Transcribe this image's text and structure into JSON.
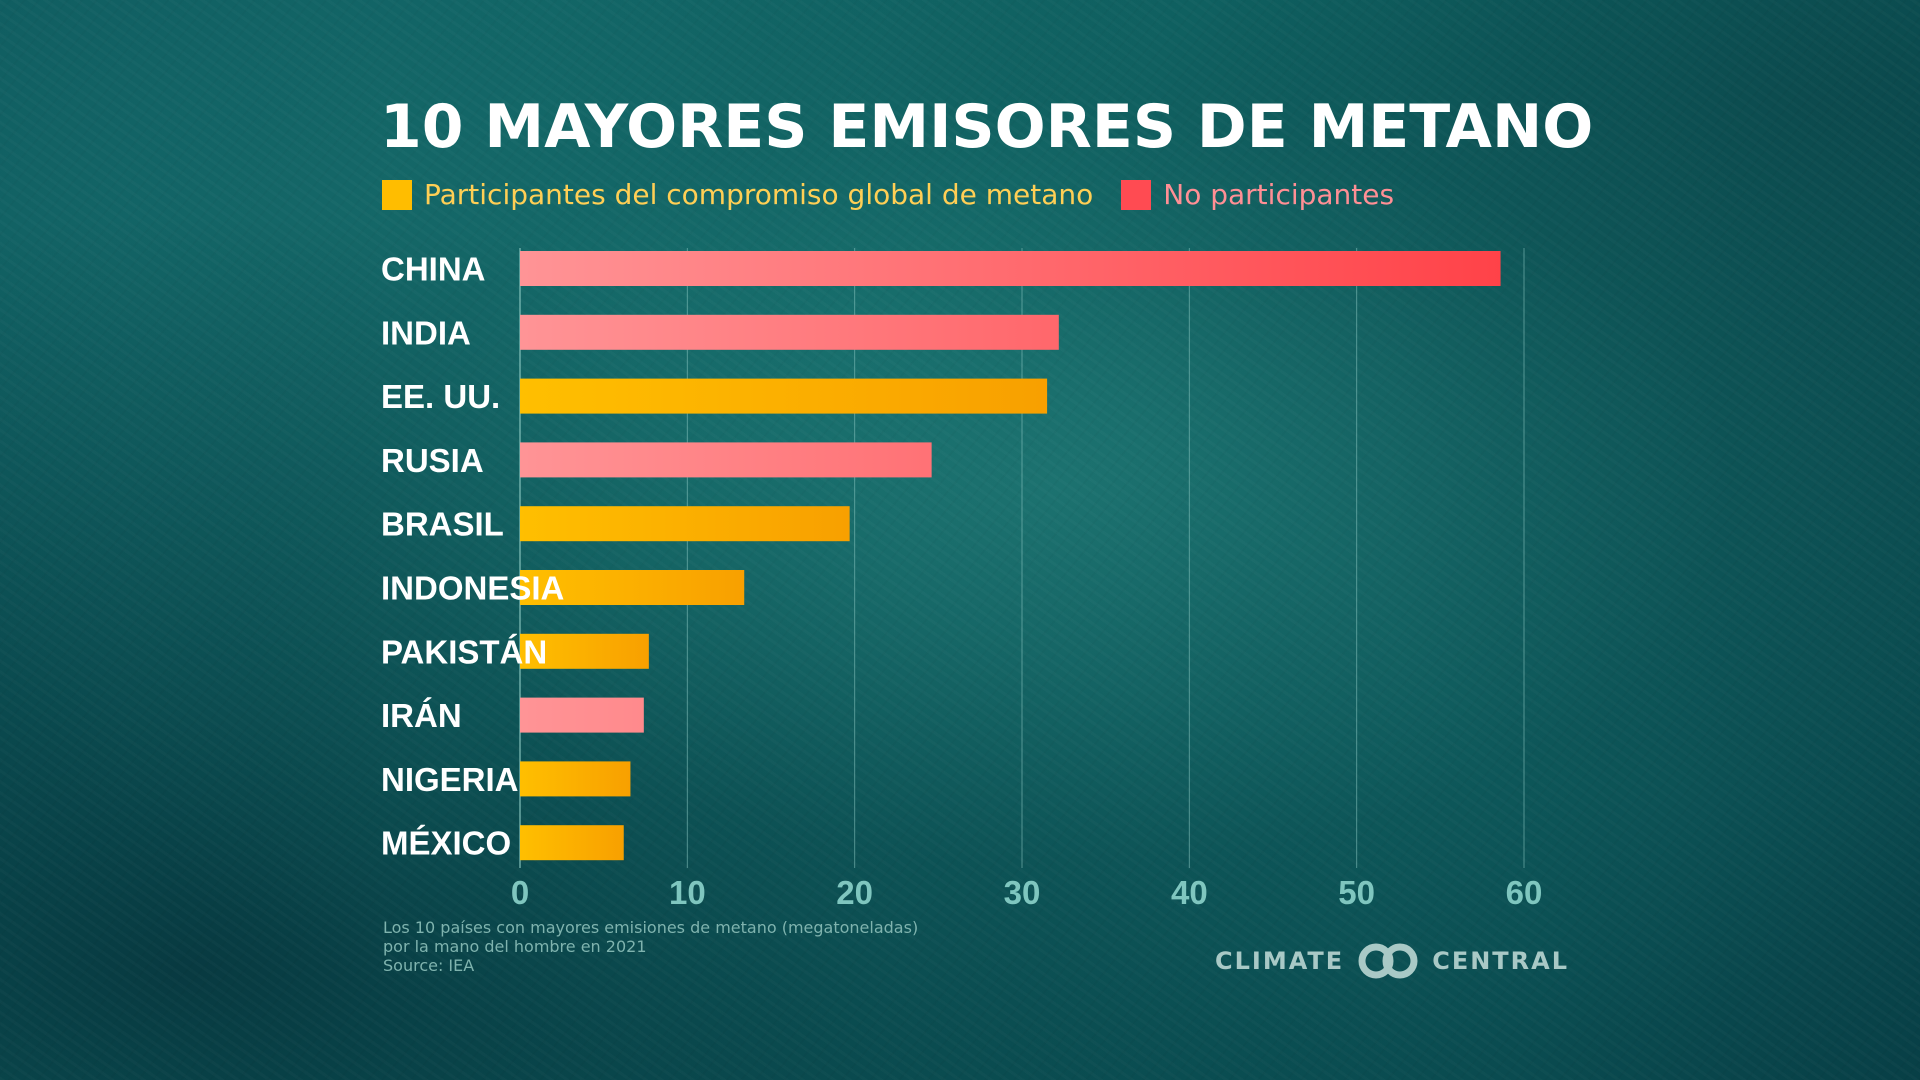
{
  "title": "10 MAYORES EMISORES DE METANO",
  "legend": {
    "participants": "Participantes del compromiso global de metano",
    "non_participants": "No participantes"
  },
  "colors": {
    "participants_start": "#ffbf00",
    "participants_end": "#f8a000",
    "non_participants_start": "#ff9496",
    "non_participants_end": "#ff4248",
    "background": "#0f6f6d",
    "gridline": "#8cc8c2",
    "tick_label": "#7fc6bf"
  },
  "chart_data": {
    "type": "bar",
    "orientation": "horizontal",
    "categories": [
      "CHINA",
      "INDIA",
      "EE. UU.",
      "RUSIA",
      "BRASIL",
      "INDONESIA",
      "PAKISTÁN",
      "IRÁN",
      "NIGERIA",
      "MÉXICO"
    ],
    "values": [
      58.6,
      32.2,
      31.5,
      24.6,
      19.7,
      13.4,
      7.7,
      7.4,
      6.6,
      6.2
    ],
    "groups": [
      "non_participant",
      "non_participant",
      "participant",
      "non_participant",
      "participant",
      "participant",
      "participant",
      "non_participant",
      "participant",
      "participant"
    ],
    "xlim": [
      0,
      60
    ],
    "x_ticks": [
      0,
      10,
      20,
      30,
      40,
      50,
      60
    ],
    "grid": true,
    "legend_position": "top-left"
  },
  "footnote": {
    "line1": "Los 10 países con mayores emisiones de metano (megatoneladas)",
    "line2": "por la mano del hombre en 2021",
    "source": "Source: IEA"
  },
  "brand": {
    "left_word": "CLIMATE",
    "right_word": "CENTRAL",
    "logo_icon": "interlocking-rings-icon"
  }
}
